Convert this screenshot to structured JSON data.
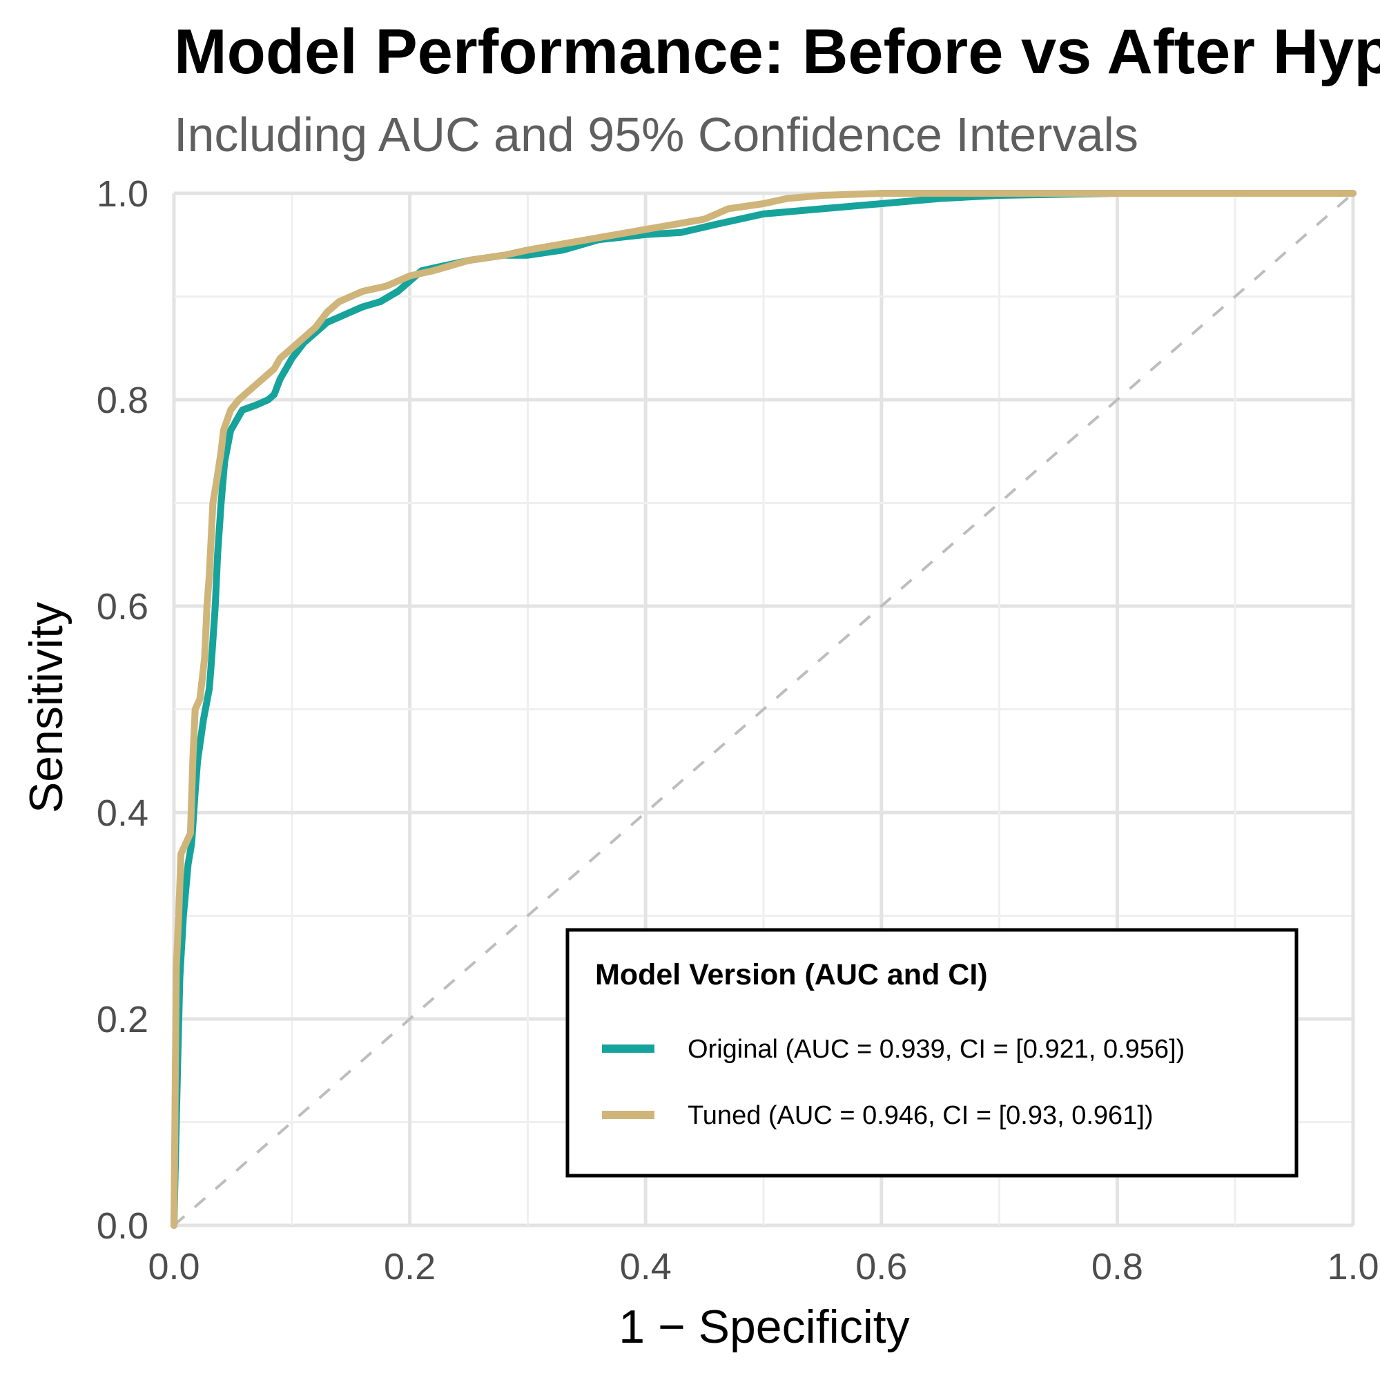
{
  "chart_data": {
    "type": "line",
    "title": "Model Performance: Before vs After Hyperparameter Tuning",
    "subtitle": "Including AUC and 95% Confidence Intervals",
    "xlabel": "1 − Specificity",
    "ylabel": "Sensitivity",
    "xlim": [
      0,
      1
    ],
    "ylim": [
      0,
      1
    ],
    "x_ticks": [
      "0.0",
      "0.2",
      "0.4",
      "0.6",
      "0.8",
      "1.0"
    ],
    "y_ticks": [
      "0.0",
      "0.2",
      "0.4",
      "0.6",
      "0.8",
      "1.0"
    ],
    "grid": true,
    "diagonal_reference": true,
    "legend": {
      "title": "Model Version (AUC and CI)",
      "placement": "bottom-right"
    },
    "series": [
      {
        "name": "Original (AUC = 0.939, CI = [0.921, 0.956])",
        "color": "#16a39b",
        "points": [
          [
            0,
            0
          ],
          [
            0.003,
            0.15
          ],
          [
            0.005,
            0.24
          ],
          [
            0.008,
            0.3
          ],
          [
            0.012,
            0.35
          ],
          [
            0.015,
            0.37
          ],
          [
            0.018,
            0.42
          ],
          [
            0.02,
            0.45
          ],
          [
            0.025,
            0.49
          ],
          [
            0.03,
            0.52
          ],
          [
            0.032,
            0.55
          ],
          [
            0.035,
            0.6
          ],
          [
            0.037,
            0.65
          ],
          [
            0.04,
            0.7
          ],
          [
            0.043,
            0.74
          ],
          [
            0.048,
            0.77
          ],
          [
            0.053,
            0.78
          ],
          [
            0.058,
            0.79
          ],
          [
            0.07,
            0.795
          ],
          [
            0.08,
            0.8
          ],
          [
            0.085,
            0.805
          ],
          [
            0.09,
            0.82
          ],
          [
            0.095,
            0.83
          ],
          [
            0.1,
            0.84
          ],
          [
            0.11,
            0.855
          ],
          [
            0.12,
            0.865
          ],
          [
            0.13,
            0.875
          ],
          [
            0.14,
            0.88
          ],
          [
            0.15,
            0.885
          ],
          [
            0.16,
            0.89
          ],
          [
            0.175,
            0.895
          ],
          [
            0.19,
            0.905
          ],
          [
            0.2,
            0.915
          ],
          [
            0.21,
            0.925
          ],
          [
            0.23,
            0.93
          ],
          [
            0.25,
            0.935
          ],
          [
            0.28,
            0.94
          ],
          [
            0.3,
            0.94
          ],
          [
            0.33,
            0.945
          ],
          [
            0.36,
            0.955
          ],
          [
            0.4,
            0.96
          ],
          [
            0.43,
            0.962
          ],
          [
            0.46,
            0.97
          ],
          [
            0.5,
            0.98
          ],
          [
            0.55,
            0.985
          ],
          [
            0.6,
            0.99
          ],
          [
            0.65,
            0.995
          ],
          [
            0.7,
            0.998
          ],
          [
            0.75,
            0.999
          ],
          [
            0.8,
            1.0
          ],
          [
            0.9,
            1.0
          ],
          [
            1.0,
            1.0
          ]
        ]
      },
      {
        "name": "Tuned (AUC = 0.946, CI = [0.93, 0.961])",
        "color": "#cfb57a",
        "points": [
          [
            0,
            0
          ],
          [
            0.002,
            0.25
          ],
          [
            0.004,
            0.3
          ],
          [
            0.006,
            0.36
          ],
          [
            0.01,
            0.37
          ],
          [
            0.014,
            0.38
          ],
          [
            0.016,
            0.45
          ],
          [
            0.018,
            0.5
          ],
          [
            0.022,
            0.51
          ],
          [
            0.026,
            0.55
          ],
          [
            0.028,
            0.6
          ],
          [
            0.03,
            0.63
          ],
          [
            0.033,
            0.7
          ],
          [
            0.036,
            0.72
          ],
          [
            0.04,
            0.75
          ],
          [
            0.042,
            0.77
          ],
          [
            0.045,
            0.78
          ],
          [
            0.048,
            0.79
          ],
          [
            0.055,
            0.8
          ],
          [
            0.065,
            0.81
          ],
          [
            0.075,
            0.82
          ],
          [
            0.085,
            0.83
          ],
          [
            0.09,
            0.84
          ],
          [
            0.1,
            0.85
          ],
          [
            0.11,
            0.86
          ],
          [
            0.12,
            0.87
          ],
          [
            0.13,
            0.885
          ],
          [
            0.14,
            0.895
          ],
          [
            0.15,
            0.9
          ],
          [
            0.16,
            0.905
          ],
          [
            0.18,
            0.91
          ],
          [
            0.19,
            0.915
          ],
          [
            0.2,
            0.92
          ],
          [
            0.22,
            0.925
          ],
          [
            0.25,
            0.935
          ],
          [
            0.28,
            0.94
          ],
          [
            0.3,
            0.945
          ],
          [
            0.35,
            0.955
          ],
          [
            0.4,
            0.965
          ],
          [
            0.45,
            0.975
          ],
          [
            0.47,
            0.985
          ],
          [
            0.5,
            0.99
          ],
          [
            0.52,
            0.995
          ],
          [
            0.55,
            0.998
          ],
          [
            0.6,
            1.0
          ],
          [
            0.7,
            1.0
          ],
          [
            0.8,
            1.0
          ],
          [
            1.0,
            1.0
          ]
        ]
      }
    ]
  }
}
